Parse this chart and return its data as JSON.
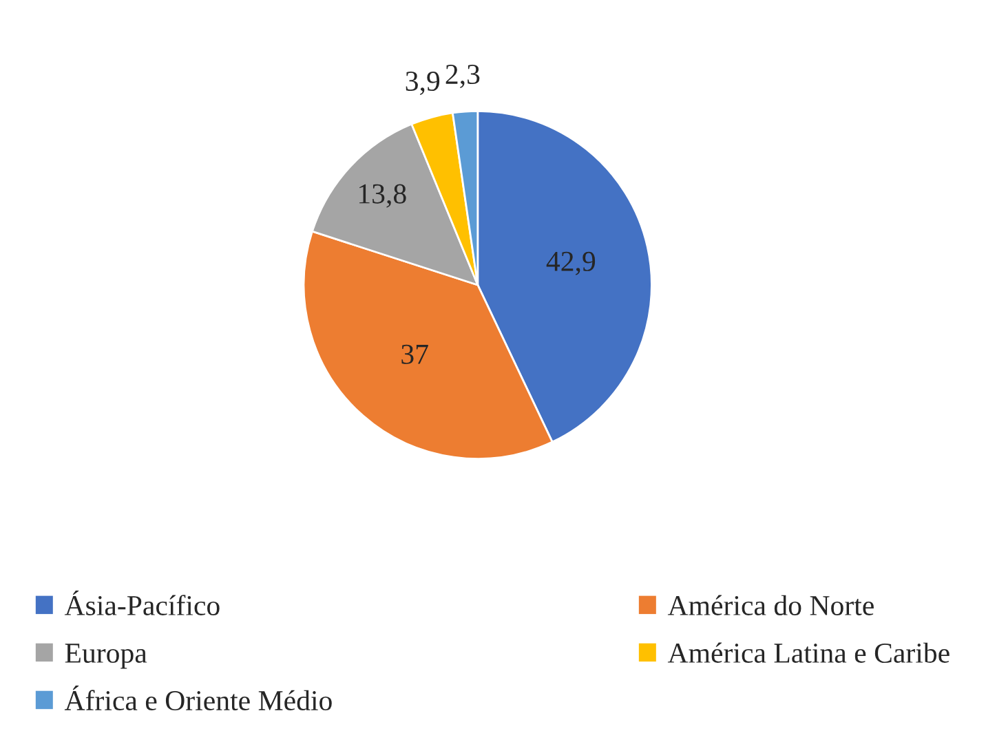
{
  "chart_data": {
    "type": "pie",
    "categories": [
      "Ásia-Pacífico",
      "América do Norte",
      "Europa",
      "América Latina e Caribe",
      "África e Oriente Médio"
    ],
    "values": [
      42.9,
      37,
      13.8,
      3.9,
      2.3
    ],
    "value_labels": [
      "42,9",
      "37",
      "13,8",
      "3,9",
      "2,3"
    ],
    "colors": [
      "#4472c4",
      "#ed7d31",
      "#a5a5a5",
      "#ffc000",
      "#5b9bd5"
    ],
    "legend": "bottom"
  }
}
